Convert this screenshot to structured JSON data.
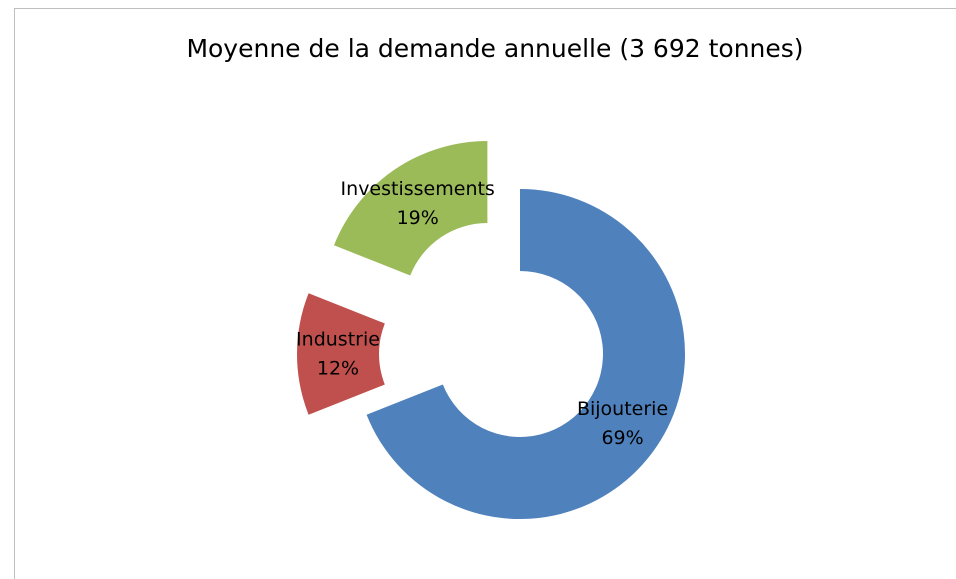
{
  "chart_data": {
    "type": "donut",
    "title": "Moyenne de la demande annuelle (3 692 tonnes)",
    "categories": [
      "Bijouterie",
      "Industrie",
      "Investissements"
    ],
    "values": [
      69,
      12,
      19
    ],
    "value_labels": [
      "69%",
      "12%",
      "19%"
    ],
    "colors": [
      "#4f81bd",
      "#c0504d",
      "#9bbb59"
    ]
  }
}
